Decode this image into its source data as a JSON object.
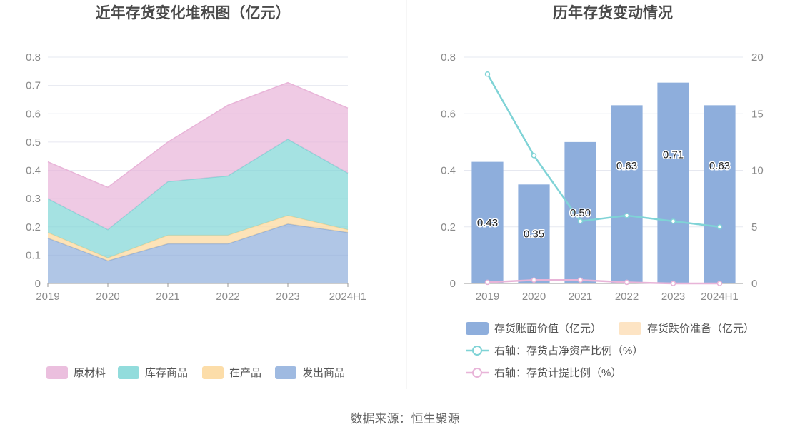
{
  "source": "数据来源：恒生聚源",
  "colors": {
    "raw": "#e8b4d8",
    "stock": "#7fd6d6",
    "wip": "#fcd79a",
    "shipped": "#8eaedc",
    "bar_book": "#8eaedc",
    "bar_reserve": "#fde4c4",
    "line_net": "#7fd3d6",
    "line_prov": "#e8b4d8",
    "grid": "#e6e8f0",
    "axis": "#999999"
  },
  "chart_data": [
    {
      "type": "area",
      "stacked": true,
      "title": "近年存货变化堆积图（亿元）",
      "categories": [
        "2019",
        "2020",
        "2021",
        "2022",
        "2023",
        "2024H1"
      ],
      "ylim": [
        0,
        0.8
      ],
      "yticks": [
        "0",
        "0.1",
        "0.2",
        "0.3",
        "0.4",
        "0.5",
        "0.6",
        "0.7",
        "0.8"
      ],
      "grid": true,
      "legend_position": "bottom",
      "series": [
        {
          "name": "发出商品",
          "key": "shipped",
          "values": [
            0.16,
            0.08,
            0.14,
            0.14,
            0.21,
            0.18
          ]
        },
        {
          "name": "在产品",
          "key": "wip",
          "values": [
            0.02,
            0.01,
            0.03,
            0.03,
            0.03,
            0.01
          ]
        },
        {
          "name": "库存商品",
          "key": "stock",
          "values": [
            0.12,
            0.1,
            0.19,
            0.21,
            0.27,
            0.2
          ]
        },
        {
          "name": "原材料",
          "key": "raw",
          "values": [
            0.13,
            0.15,
            0.14,
            0.25,
            0.2,
            0.23
          ]
        }
      ],
      "legend": [
        {
          "name": "原材料",
          "key": "raw"
        },
        {
          "name": "库存商品",
          "key": "stock"
        },
        {
          "name": "在产品",
          "key": "wip"
        },
        {
          "name": "发出商品",
          "key": "shipped"
        }
      ]
    },
    {
      "type": "bar",
      "title": "历年存货变动情况",
      "categories": [
        "2019",
        "2020",
        "2021",
        "2022",
        "2023",
        "2024H1"
      ],
      "ylim": [
        0,
        0.8
      ],
      "yticks": [
        "0",
        "0.2",
        "0.4",
        "0.6",
        "0.8"
      ],
      "y2lim": [
        0,
        20
      ],
      "y2ticks": [
        "0",
        "5",
        "10",
        "15",
        "20"
      ],
      "grid": true,
      "legend_position": "bottom",
      "series": [
        {
          "name": "存货账面价值（亿元）",
          "key": "bar_book",
          "kind": "bar",
          "axis": "left",
          "values": [
            0.43,
            0.35,
            0.5,
            0.63,
            0.71,
            0.63
          ],
          "labels": [
            "0.43",
            "0.35",
            "0.50",
            "0.63",
            "0.71",
            "0.63"
          ]
        },
        {
          "name": "存货跌价准备（亿元）",
          "key": "bar_reserve",
          "kind": "bar",
          "axis": "left",
          "values": [
            0,
            0,
            0,
            0,
            0,
            0
          ]
        },
        {
          "name": "右轴：存货占净资产比例（%）",
          "key": "line_net",
          "kind": "line",
          "axis": "right",
          "values": [
            18.5,
            11.3,
            5.5,
            6.0,
            5.5,
            5.0
          ]
        },
        {
          "name": "右轴：存货计提比例（%）",
          "key": "line_prov",
          "kind": "line",
          "axis": "right",
          "values": [
            0.1,
            0.3,
            0.3,
            0.1,
            0.0,
            0.0
          ]
        }
      ]
    }
  ]
}
